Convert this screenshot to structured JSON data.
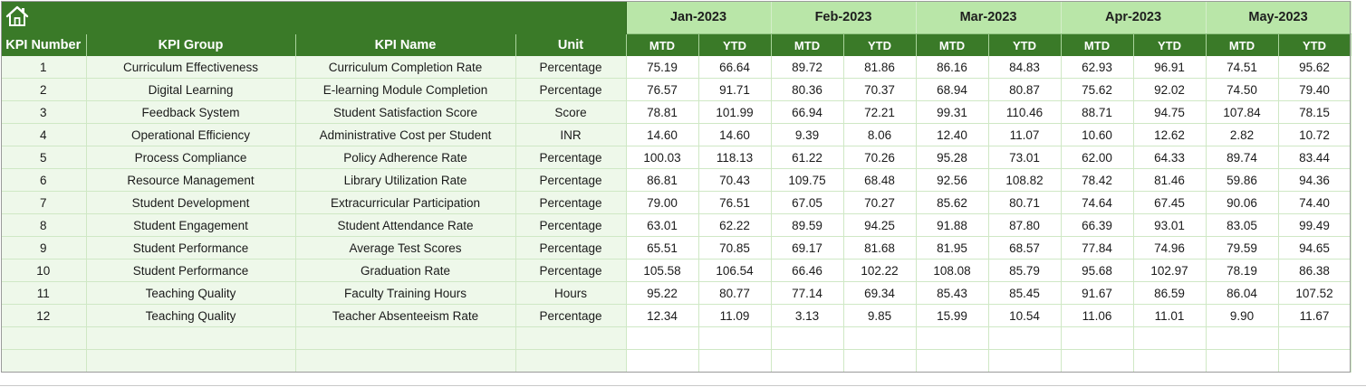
{
  "sheet": {
    "home_icon": "home-icon",
    "columns": {
      "kpi_number": "KPI Number",
      "kpi_group": "KPI Group",
      "kpi_name": "KPI Name",
      "unit": "Unit"
    },
    "months": [
      "Jan-2023",
      "Feb-2023",
      "Mar-2023",
      "Apr-2023",
      "May-2023"
    ],
    "sub_labels": {
      "mtd": "MTD",
      "ytd": "YTD"
    },
    "rows": [
      {
        "num": "1",
        "group": "Curriculum Effectiveness",
        "name": "Curriculum Completion Rate",
        "unit": "Percentage",
        "vals": [
          "75.19",
          "66.64",
          "89.72",
          "81.86",
          "86.16",
          "84.83",
          "62.93",
          "96.91",
          "74.51",
          "95.62"
        ]
      },
      {
        "num": "2",
        "group": "Digital Learning",
        "name": "E-learning Module Completion",
        "unit": "Percentage",
        "vals": [
          "76.57",
          "91.71",
          "80.36",
          "70.37",
          "68.94",
          "80.87",
          "75.62",
          "92.02",
          "74.50",
          "79.40"
        ]
      },
      {
        "num": "3",
        "group": "Feedback System",
        "name": "Student Satisfaction Score",
        "unit": "Score",
        "vals": [
          "78.81",
          "101.99",
          "66.94",
          "72.21",
          "99.31",
          "110.46",
          "88.71",
          "94.75",
          "107.84",
          "78.15"
        ]
      },
      {
        "num": "4",
        "group": "Operational Efficiency",
        "name": "Administrative Cost per Student",
        "unit": "INR",
        "vals": [
          "14.60",
          "14.60",
          "9.39",
          "8.06",
          "12.40",
          "11.07",
          "10.60",
          "12.62",
          "2.82",
          "10.72"
        ]
      },
      {
        "num": "5",
        "group": "Process Compliance",
        "name": "Policy Adherence Rate",
        "unit": "Percentage",
        "vals": [
          "100.03",
          "118.13",
          "61.22",
          "70.26",
          "95.28",
          "73.01",
          "62.00",
          "64.33",
          "89.74",
          "83.44"
        ]
      },
      {
        "num": "6",
        "group": "Resource Management",
        "name": "Library Utilization Rate",
        "unit": "Percentage",
        "vals": [
          "86.81",
          "70.43",
          "109.75",
          "68.48",
          "92.56",
          "108.82",
          "78.42",
          "81.46",
          "59.86",
          "94.36"
        ]
      },
      {
        "num": "7",
        "group": "Student Development",
        "name": "Extracurricular Participation",
        "unit": "Percentage",
        "vals": [
          "79.00",
          "76.51",
          "67.05",
          "70.27",
          "85.62",
          "80.71",
          "74.64",
          "67.45",
          "90.06",
          "74.40"
        ]
      },
      {
        "num": "8",
        "group": "Student Engagement",
        "name": "Student Attendance Rate",
        "unit": "Percentage",
        "vals": [
          "63.01",
          "62.22",
          "89.59",
          "94.25",
          "91.88",
          "87.80",
          "66.39",
          "93.01",
          "83.05",
          "99.49"
        ]
      },
      {
        "num": "9",
        "group": "Student Performance",
        "name": "Average Test Scores",
        "unit": "Percentage",
        "vals": [
          "65.51",
          "70.85",
          "69.17",
          "81.68",
          "81.95",
          "68.57",
          "77.84",
          "74.96",
          "79.59",
          "94.65"
        ]
      },
      {
        "num": "10",
        "group": "Student Performance",
        "name": "Graduation Rate",
        "unit": "Percentage",
        "vals": [
          "105.58",
          "106.54",
          "66.46",
          "102.22",
          "108.08",
          "85.79",
          "95.68",
          "102.97",
          "78.19",
          "86.38"
        ]
      },
      {
        "num": "11",
        "group": "Teaching Quality",
        "name": "Faculty Training Hours",
        "unit": "Hours",
        "vals": [
          "95.22",
          "80.77",
          "77.14",
          "69.34",
          "85.43",
          "85.45",
          "91.67",
          "86.59",
          "86.04",
          "107.52"
        ]
      },
      {
        "num": "12",
        "group": "Teaching Quality",
        "name": "Teacher Absenteeism Rate",
        "unit": "Percentage",
        "vals": [
          "12.34",
          "11.09",
          "3.13",
          "9.85",
          "15.99",
          "10.54",
          "11.06",
          "11.01",
          "9.90",
          "11.67"
        ]
      }
    ],
    "empty_rows": 2,
    "colors": {
      "header_green": "#3a7a28",
      "month_green": "#b9e6a8",
      "row_tint": "#eef8ea"
    }
  }
}
